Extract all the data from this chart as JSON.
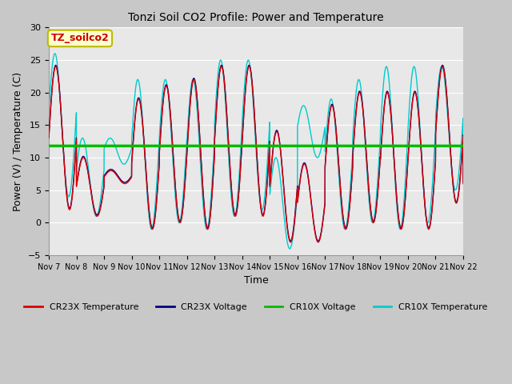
{
  "title": "Tonzi Soil CO2 Profile: Power and Temperature",
  "xlabel": "Time",
  "ylabel": "Power (V) / Temperature (C)",
  "ylim": [
    -5,
    30
  ],
  "yticks": [
    -5,
    0,
    5,
    10,
    15,
    20,
    25,
    30
  ],
  "xlim": [
    0,
    15
  ],
  "annotation_label": "TZ_soilco2",
  "annotation_bg": "#ffffcc",
  "annotation_border": "#bbbb00",
  "annotation_text_color": "#cc0000",
  "plot_bg": "#e8e8e8",
  "fig_bg": "#c8c8c8",
  "cr23x_temp_color": "#dd0000",
  "cr23x_volt_color": "#000088",
  "cr10x_volt_color": "#00bb00",
  "cr10x_temp_color": "#00cccc",
  "cr10x_volt_value": 11.8,
  "xtick_labels": [
    "Nov 7",
    "Nov 8",
    "Nov 9",
    "Nov 10",
    "Nov 11",
    "Nov 12",
    "Nov 13",
    "Nov 14",
    "Nov 15",
    "Nov 16",
    "Nov 17",
    "Nov 18",
    "Nov 19",
    "Nov 20",
    "Nov 21",
    "Nov 22"
  ],
  "xtick_positions": [
    0,
    1,
    2,
    3,
    4,
    5,
    6,
    7,
    8,
    9,
    10,
    11,
    12,
    13,
    14,
    15
  ],
  "legend_entries": [
    "CR23X Temperature",
    "CR23X Voltage",
    "CR10X Voltage",
    "CR10X Temperature"
  ],
  "figsize": [
    6.4,
    4.8
  ],
  "dpi": 100
}
